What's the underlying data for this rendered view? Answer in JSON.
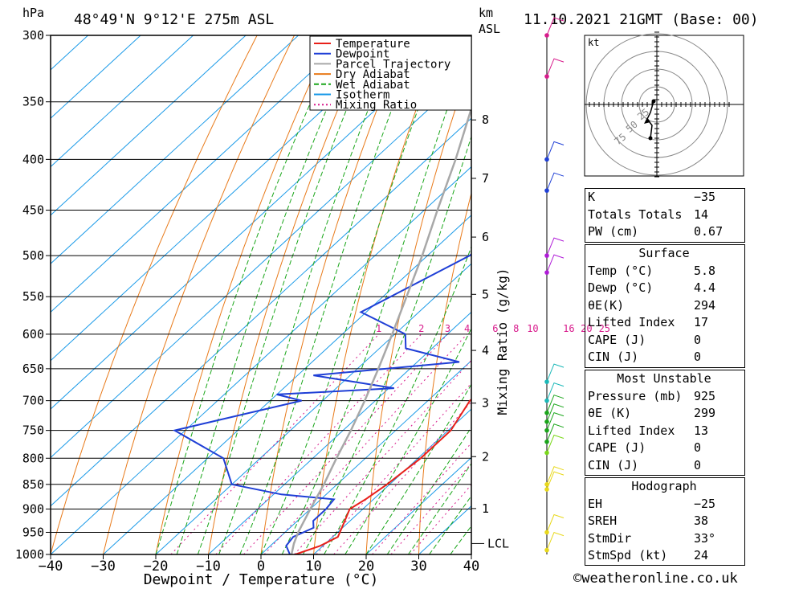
{
  "header": {
    "pressure_unit": "hPa",
    "location": "48°49'N  9°12'E  275m  ASL",
    "height_unit_1": "km",
    "height_unit_2": "ASL",
    "datetime": "11.10.2021  21GMT  (Base: 00)"
  },
  "chart_data": {
    "type": "line",
    "title": "48°49'N  9°12'E  275m  ASL",
    "xlabel": "Dewpoint / Temperature (°C)",
    "ylabel": "hPa",
    "xlim": [
      -40,
      40
    ],
    "ylim": [
      1000,
      300
    ],
    "x_ticks": [
      "−40",
      "−30",
      "−20",
      "−10",
      "0",
      "10",
      "20",
      "30",
      "40"
    ],
    "pressure_levels": [
      300,
      350,
      400,
      450,
      500,
      550,
      600,
      650,
      700,
      750,
      800,
      850,
      900,
      950,
      1000
    ],
    "km_ticks": [
      {
        "label": "8",
        "p": 365
      },
      {
        "label": "7",
        "p": 418
      },
      {
        "label": "6",
        "p": 479
      },
      {
        "label": "5",
        "p": 547
      },
      {
        "label": "4",
        "p": 623
      },
      {
        "label": "3",
        "p": 704
      },
      {
        "label": "2",
        "p": 797
      },
      {
        "label": "1",
        "p": 899
      }
    ],
    "lcl": {
      "label": "LCL",
      "p": 975
    },
    "mixing_ratio_axis_label": "Mixing Ratio (g/kg)",
    "mixing_ratio_labels": [
      "1",
      "2",
      "3",
      "4",
      "6",
      "8",
      "10",
      "16",
      "20",
      "25"
    ],
    "mixing_ratio_values": [
      1,
      2,
      3,
      4,
      6,
      8,
      10,
      16,
      20,
      25
    ],
    "legend": [
      {
        "name": "Temperature",
        "color": "#e8201a"
      },
      {
        "name": "Dewpoint",
        "color": "#1f3fd6"
      },
      {
        "name": "Parcel Trajectory",
        "color": "#a8a8a8"
      },
      {
        "name": "Dry Adiabat",
        "color": "#e87a1a"
      },
      {
        "name": "Wet Adiabat",
        "color": "#1aa61a"
      },
      {
        "name": "Isotherm",
        "color": "#1a9ae8"
      },
      {
        "name": "Mixing Ratio",
        "color": "#d81b8c"
      }
    ],
    "series": [
      {
        "name": "Temperature",
        "points": [
          [
            1000,
            6.5
          ],
          [
            980,
            9.5
          ],
          [
            960,
            11.0
          ],
          [
            925,
            9.0
          ],
          [
            900,
            7.5
          ],
          [
            880,
            8.5
          ],
          [
            850,
            9.5
          ],
          [
            800,
            10.5
          ],
          [
            750,
            10.5
          ],
          [
            700,
            8.0
          ],
          [
            680,
            8.5
          ],
          [
            650,
            7.0
          ],
          [
            620,
            5.0
          ],
          [
            600,
            5.0
          ],
          [
            550,
            -0.5
          ],
          [
            500,
            -7.5
          ],
          [
            450,
            -15.5
          ],
          [
            400,
            -24.5
          ],
          [
            350,
            -34.0
          ],
          [
            300,
            -45.5
          ]
        ]
      },
      {
        "name": "Dewpoint",
        "points": [
          [
            1000,
            5.5
          ],
          [
            980,
            3.0
          ],
          [
            960,
            2.5
          ],
          [
            940,
            4.5
          ],
          [
            925,
            3.0
          ],
          [
            900,
            3.0
          ],
          [
            880,
            2.5
          ],
          [
            870,
            -8.5
          ],
          [
            850,
            -20.0
          ],
          [
            800,
            -27.0
          ],
          [
            750,
            -42.0
          ],
          [
            700,
            -24.0
          ],
          [
            690,
            -30.0
          ],
          [
            680,
            -9.0
          ],
          [
            660,
            -27.0
          ],
          [
            640,
            -2.0
          ],
          [
            620,
            -15.0
          ],
          [
            600,
            -18.0
          ],
          [
            570,
            -31.0
          ],
          [
            500,
            -22.0
          ],
          [
            470,
            -20.5
          ],
          [
            440,
            -32.0
          ],
          [
            400,
            -32.0
          ],
          [
            380,
            -34.0
          ],
          [
            360,
            -27.0
          ],
          [
            350,
            -27.0
          ],
          [
            300,
            -40.0
          ]
        ]
      },
      {
        "name": "Parcel Trajectory",
        "points": [
          [
            1000,
            5.8
          ],
          [
            975,
            4.0
          ],
          [
            950,
            2.5
          ],
          [
            900,
            0.0
          ],
          [
            850,
            -2.5
          ],
          [
            800,
            -5.5
          ],
          [
            750,
            -8.5
          ],
          [
            700,
            -12.0
          ],
          [
            650,
            -16.0
          ],
          [
            600,
            -20.5
          ],
          [
            550,
            -25.5
          ],
          [
            500,
            -31.0
          ],
          [
            450,
            -37.5
          ],
          [
            400,
            -44.5
          ],
          [
            350,
            -53.0
          ],
          [
            300,
            -62.0
          ]
        ]
      }
    ],
    "wind_barbs": [
      {
        "p": 300,
        "color": "#d81b8c"
      },
      {
        "p": 330,
        "color": "#d81b8c"
      },
      {
        "p": 400,
        "color": "#1f3fd6"
      },
      {
        "p": 430,
        "color": "#1f3fd6"
      },
      {
        "p": 500,
        "color": "#b01bd8"
      },
      {
        "p": 520,
        "color": "#b01bd8"
      },
      {
        "p": 670,
        "color": "#1ab8b8"
      },
      {
        "p": 700,
        "color": "#1ab8b8"
      },
      {
        "p": 720,
        "color": "#1aa61a"
      },
      {
        "p": 735,
        "color": "#1aa61a"
      },
      {
        "p": 750,
        "color": "#1aa61a"
      },
      {
        "p": 770,
        "color": "#1aa61a"
      },
      {
        "p": 790,
        "color": "#7ad81a"
      },
      {
        "p": 850,
        "color": "#e8d81a"
      },
      {
        "p": 860,
        "color": "#e8d81a"
      },
      {
        "p": 950,
        "color": "#e8d81a"
      },
      {
        "p": 990,
        "color": "#e8d81a"
      }
    ],
    "hodograph": {
      "unit": "kt",
      "ring_labels": [
        "25",
        "50",
        "75"
      ]
    }
  },
  "indices": {
    "rows": [
      {
        "label": "K",
        "value": "−35"
      },
      {
        "label": "Totals Totals",
        "value": "14"
      },
      {
        "label": "PW (cm)",
        "value": "0.67"
      }
    ]
  },
  "surface": {
    "title": "Surface",
    "rows": [
      {
        "label": "Temp (°C)",
        "value": "5.8"
      },
      {
        "label": "Dewp (°C)",
        "value": "4.4"
      },
      {
        "label": "θE(K)",
        "value": "294"
      },
      {
        "label": "Lifted Index",
        "value": "17"
      },
      {
        "label": "CAPE (J)",
        "value": "0"
      },
      {
        "label": "CIN (J)",
        "value": "0"
      }
    ]
  },
  "most_unstable": {
    "title": "Most Unstable",
    "rows": [
      {
        "label": "Pressure (mb)",
        "value": "925"
      },
      {
        "label": "θE (K)",
        "value": "299"
      },
      {
        "label": "Lifted Index",
        "value": "13"
      },
      {
        "label": "CAPE (J)",
        "value": "0"
      },
      {
        "label": "CIN (J)",
        "value": "0"
      }
    ]
  },
  "hodograph_table": {
    "title": "Hodograph",
    "rows": [
      {
        "label": "EH",
        "value": "−25"
      },
      {
        "label": "SREH",
        "value": "38"
      },
      {
        "label": "StmDir",
        "value": "33°"
      },
      {
        "label": "StmSpd (kt)",
        "value": "24"
      }
    ]
  },
  "footer": "©weatheronline.co.uk"
}
